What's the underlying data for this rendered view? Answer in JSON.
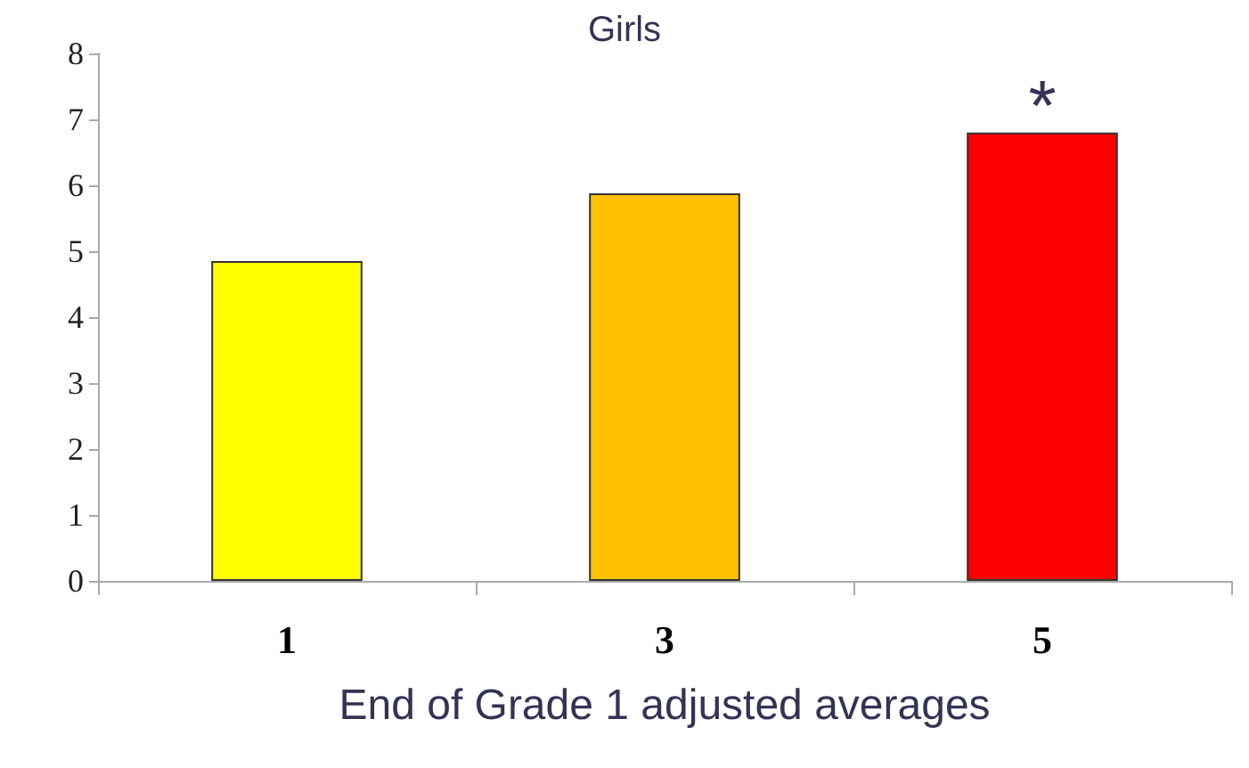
{
  "chart_data": {
    "type": "bar",
    "title": "Girls",
    "xlabel": "End of Grade 1 adjusted averages",
    "categories": [
      "1",
      "3",
      "5"
    ],
    "values": [
      4.85,
      5.88,
      6.8
    ],
    "colors": [
      "#ffff00",
      "#ffc000",
      "#ff0000"
    ],
    "ylim": [
      0,
      8
    ],
    "yticks": [
      0,
      1,
      2,
      3,
      4,
      5,
      6,
      7,
      8
    ],
    "grid": false,
    "annotations": [
      "*"
    ]
  }
}
